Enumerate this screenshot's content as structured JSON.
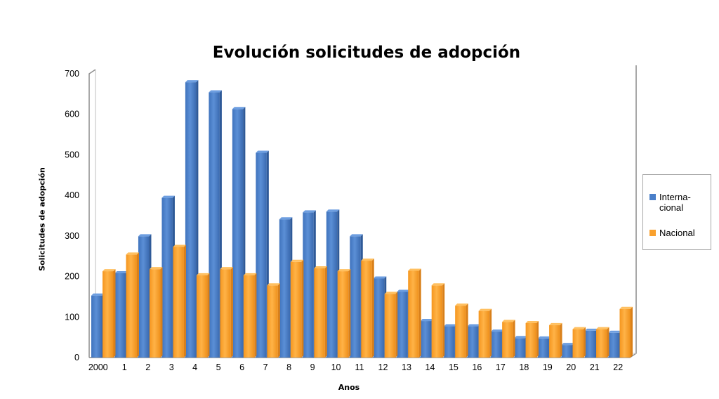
{
  "chart_data": {
    "type": "bar",
    "title": "Evolución solicitudes de adopción",
    "xlabel": "Anos",
    "ylabel": "Solicitudes de adopción",
    "ylim": [
      0,
      700
    ],
    "yticks": [
      "0",
      "100",
      "200",
      "300",
      "400",
      "500",
      "600",
      "700"
    ],
    "categories": [
      "2000",
      "1",
      "2",
      "3",
      "4",
      "5",
      "6",
      "7",
      "8",
      "9",
      "10",
      "11",
      "12",
      "13",
      "14",
      "15",
      "16",
      "17",
      "18",
      "19",
      "20",
      "21",
      "22"
    ],
    "series": [
      {
        "name": "Interna-cional",
        "legend_lines": [
          "Interna-",
          "cional"
        ],
        "color": "#4a7fc9",
        "values": [
          153,
          208,
          299,
          394,
          679,
          654,
          613,
          505,
          341,
          358,
          360,
          299,
          195,
          162,
          90,
          77,
          77,
          64,
          48,
          47,
          31,
          66,
          61
        ]
      },
      {
        "name": "Nacional",
        "legend_lines": [
          "Nacional"
        ],
        "color": "#f9a12f",
        "values": [
          213,
          254,
          218,
          273,
          203,
          218,
          203,
          178,
          236,
          220,
          213,
          239,
          157,
          214,
          178,
          128,
          115,
          88,
          85,
          80,
          70,
          70,
          120
        ]
      }
    ],
    "grid": false,
    "legend_position": "right"
  }
}
